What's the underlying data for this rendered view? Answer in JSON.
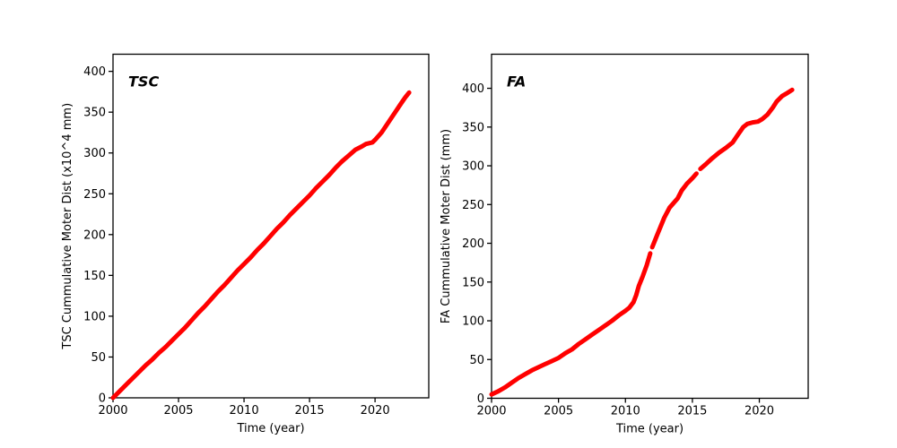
{
  "figure": {
    "background": "#ffffff",
    "spine_color": "#000000",
    "text_color": "#000000"
  },
  "chart_data": [
    {
      "type": "line",
      "panel_label": "TSC",
      "xlabel": "Time (year)",
      "ylabel": "TSC Cummulative Moter Dist (x10^4 mm)",
      "x_ticks": [
        2000,
        2005,
        2010,
        2015,
        2020
      ],
      "y_ticks": [
        0,
        50,
        100,
        150,
        200,
        250,
        300,
        350,
        400
      ],
      "xlim": [
        2000,
        2024.1
      ],
      "ylim": [
        0,
        421
      ],
      "grid": false,
      "legend": "none",
      "line_color": "#ff0000",
      "line_width": 5,
      "series": [
        {
          "name": "TSC cumulative motor distance",
          "segments": [
            [
              [
                2000.0,
                0
              ],
              [
                2000.5,
                8
              ],
              [
                2001.0,
                16
              ],
              [
                2001.5,
                24
              ],
              [
                2002.0,
                32
              ],
              [
                2002.5,
                40
              ],
              [
                2003.0,
                47
              ],
              [
                2003.5,
                55
              ],
              [
                2004.0,
                62
              ],
              [
                2004.5,
                70
              ],
              [
                2005.0,
                78
              ],
              [
                2005.5,
                86
              ],
              [
                2006.0,
                95
              ],
              [
                2006.5,
                104
              ],
              [
                2007.0,
                112
              ],
              [
                2007.5,
                121
              ],
              [
                2008.0,
                130
              ],
              [
                2008.5,
                138
              ],
              [
                2009.0,
                147
              ],
              [
                2009.5,
                156
              ],
              [
                2010.0,
                164
              ],
              [
                2010.5,
                172
              ],
              [
                2011.0,
                181
              ],
              [
                2011.5,
                189
              ],
              [
                2012.0,
                198
              ],
              [
                2012.5,
                207
              ],
              [
                2013.0,
                215
              ],
              [
                2013.5,
                224
              ],
              [
                2014.0,
                232
              ],
              [
                2014.5,
                240
              ],
              [
                2015.0,
                248
              ],
              [
                2015.5,
                257
              ],
              [
                2016.0,
                265
              ],
              [
                2016.5,
                273
              ],
              [
                2017.0,
                282
              ],
              [
                2017.5,
                290
              ],
              [
                2018.0,
                297
              ],
              [
                2018.5,
                304
              ],
              [
                2019.0,
                308
              ],
              [
                2019.3,
                311
              ],
              [
                2019.8,
                313
              ],
              [
                2020.0,
                316
              ],
              [
                2020.5,
                325
              ],
              [
                2021.0,
                337
              ],
              [
                2021.5,
                349
              ],
              [
                2022.0,
                361
              ],
              [
                2022.3,
                368
              ],
              [
                2022.6,
                374
              ]
            ]
          ]
        }
      ]
    },
    {
      "type": "line",
      "panel_label": "FA",
      "xlabel": "Time (year)",
      "ylabel": "FA Cummulative Moter Dist (mm)",
      "x_ticks": [
        2000,
        2005,
        2010,
        2015,
        2020
      ],
      "y_ticks": [
        0,
        50,
        100,
        150,
        200,
        250,
        300,
        350,
        400
      ],
      "xlim": [
        2000,
        2023.65
      ],
      "ylim": [
        0,
        444
      ],
      "grid": false,
      "legend": "none",
      "line_color": "#ff0000",
      "line_width": 5,
      "series": [
        {
          "name": "FA cumulative motor distance",
          "segments": [
            [
              [
                2000.0,
                5
              ],
              [
                2000.5,
                9
              ],
              [
                2001.0,
                14
              ],
              [
                2001.5,
                20
              ],
              [
                2002.0,
                26
              ],
              [
                2002.5,
                31
              ],
              [
                2003.0,
                36
              ],
              [
                2003.5,
                40
              ],
              [
                2004.0,
                44
              ],
              [
                2004.5,
                48
              ],
              [
                2005.0,
                52
              ],
              [
                2005.5,
                58
              ],
              [
                2006.0,
                63
              ],
              [
                2006.5,
                70
              ],
              [
                2007.0,
                76
              ],
              [
                2007.5,
                82
              ],
              [
                2008.0,
                88
              ],
              [
                2008.5,
                94
              ],
              [
                2009.0,
                100
              ],
              [
                2009.5,
                107
              ],
              [
                2010.0,
                113
              ],
              [
                2010.3,
                117
              ],
              [
                2010.6,
                124
              ],
              [
                2010.8,
                133
              ],
              [
                2011.0,
                145
              ],
              [
                2011.3,
                158
              ],
              [
                2011.6,
                172
              ],
              [
                2011.85,
                187
              ]
            ],
            [
              [
                2012.0,
                195
              ],
              [
                2012.4,
                212
              ],
              [
                2012.9,
                233
              ],
              [
                2013.3,
                246
              ],
              [
                2013.9,
                258
              ],
              [
                2014.2,
                268
              ],
              [
                2014.6,
                277
              ],
              [
                2015.0,
                284
              ],
              [
                2015.3,
                290
              ]
            ],
            [
              [
                2015.6,
                296
              ],
              [
                2016.0,
                302
              ],
              [
                2016.5,
                310
              ],
              [
                2017.0,
                317
              ],
              [
                2017.5,
                323
              ],
              [
                2018.0,
                330
              ],
              [
                2018.4,
                340
              ],
              [
                2018.8,
                350
              ],
              [
                2019.1,
                354
              ],
              [
                2019.5,
                356
              ],
              [
                2019.9,
                357
              ],
              [
                2020.2,
                360
              ],
              [
                2020.6,
                366
              ],
              [
                2021.0,
                375
              ],
              [
                2021.3,
                383
              ],
              [
                2021.7,
                390
              ],
              [
                2022.0,
                393
              ],
              [
                2022.45,
                398
              ]
            ]
          ]
        }
      ]
    }
  ]
}
